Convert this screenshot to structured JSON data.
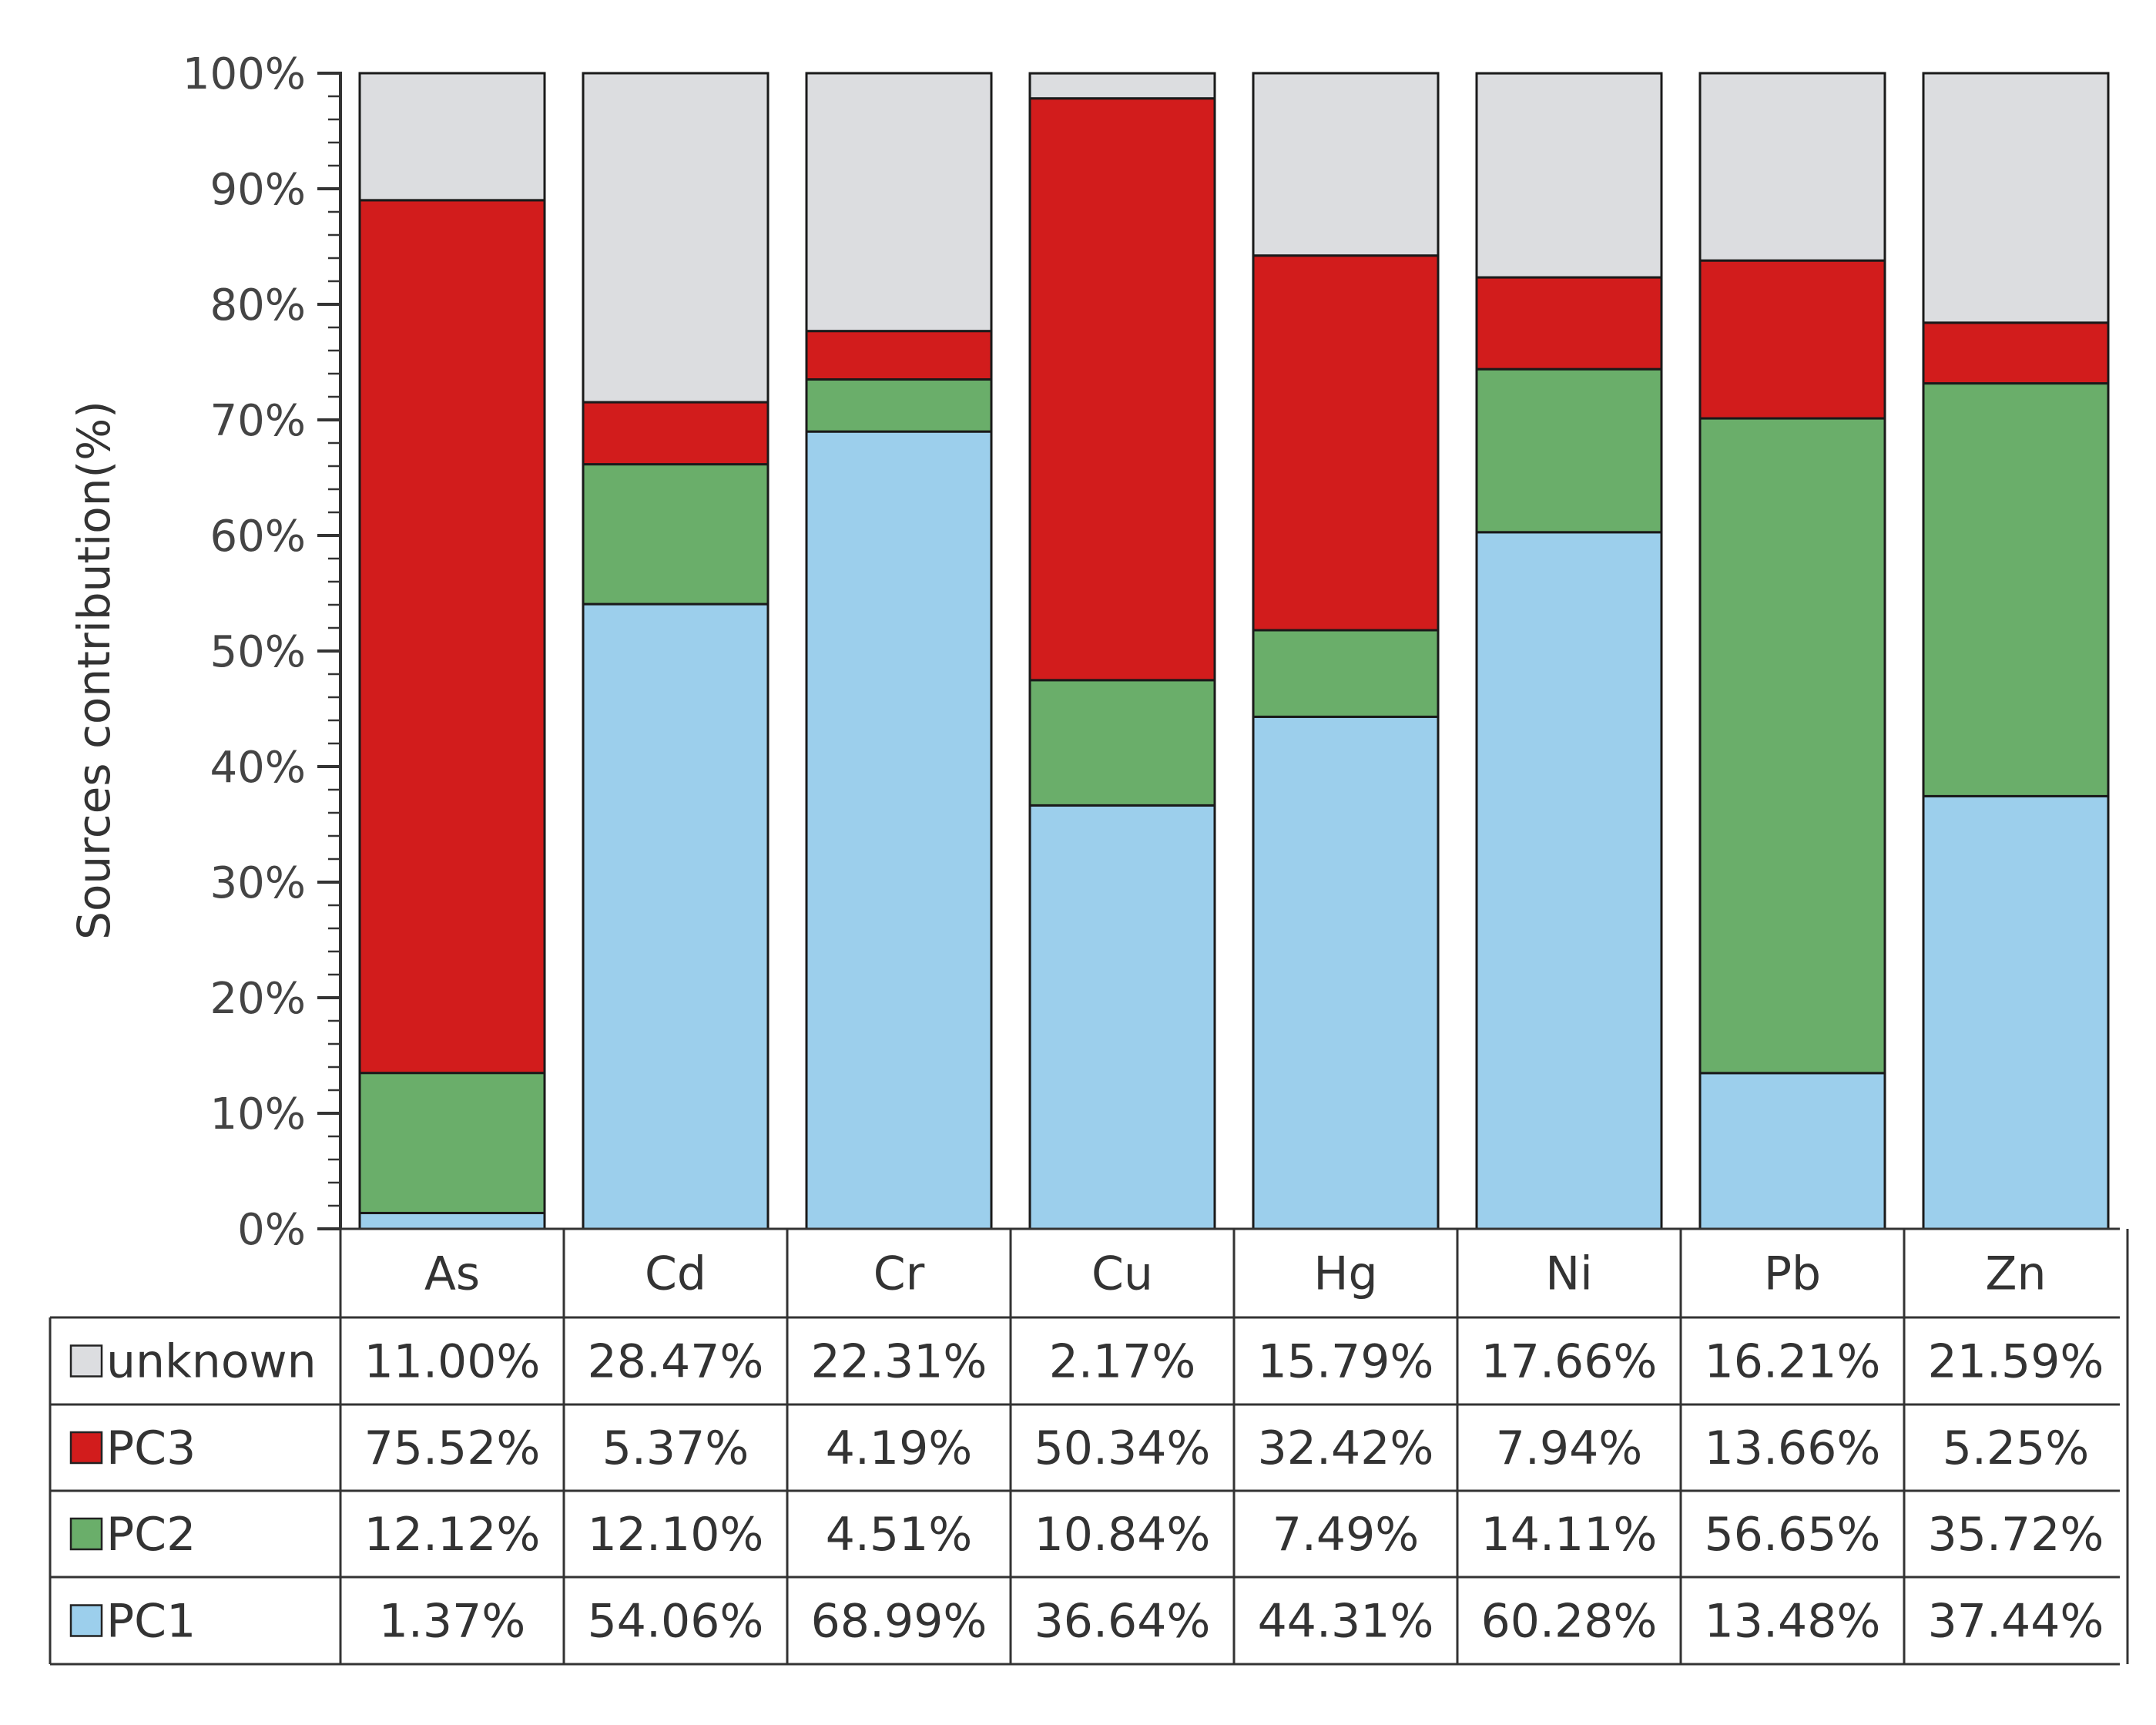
{
  "chart_data": {
    "type": "bar",
    "stacked": true,
    "ylabel": "Sources contribution(%)",
    "ylim": [
      0,
      100
    ],
    "yticks": [
      "0%",
      "10%",
      "20%",
      "30%",
      "40%",
      "50%",
      "60%",
      "70%",
      "80%",
      "90%",
      "100%"
    ],
    "categories": [
      "As",
      "Cd",
      "Cr",
      "Cu",
      "Hg",
      "Ni",
      "Pb",
      "Zn"
    ],
    "series": [
      {
        "name": "PC1",
        "color": "#9ccfec",
        "values": [
          1.37,
          54.06,
          68.99,
          36.64,
          44.31,
          60.28,
          13.48,
          37.44
        ],
        "labels": [
          "1.37%",
          "54.06%",
          "68.99%",
          "36.64%",
          "44.31%",
          "60.28%",
          "13.48%",
          "37.44%"
        ]
      },
      {
        "name": "PC2",
        "color": "#6aae6a",
        "values": [
          12.12,
          12.1,
          4.51,
          10.84,
          7.49,
          14.11,
          56.65,
          35.72
        ],
        "labels": [
          "12.12%",
          "12.10%",
          "4.51%",
          "10.84%",
          "7.49%",
          "14.11%",
          "56.65%",
          "35.72%"
        ]
      },
      {
        "name": "PC3",
        "color": "#d21c1c",
        "values": [
          75.52,
          5.37,
          4.19,
          50.34,
          32.42,
          7.94,
          13.66,
          5.25
        ],
        "labels": [
          "75.52%",
          "5.37%",
          "4.19%",
          "50.34%",
          "32.42%",
          "7.94%",
          "13.66%",
          "5.25%"
        ]
      },
      {
        "name": "unknown",
        "color": "#dcdde0",
        "values": [
          11.0,
          28.47,
          22.31,
          2.17,
          15.79,
          17.66,
          16.21,
          21.59
        ],
        "labels": [
          "11.00%",
          "28.47%",
          "22.31%",
          "2.17%",
          "15.79%",
          "17.66%",
          "16.21%",
          "21.59%"
        ]
      }
    ],
    "table_row_order": [
      "unknown",
      "PC3",
      "PC2",
      "PC1"
    ]
  }
}
